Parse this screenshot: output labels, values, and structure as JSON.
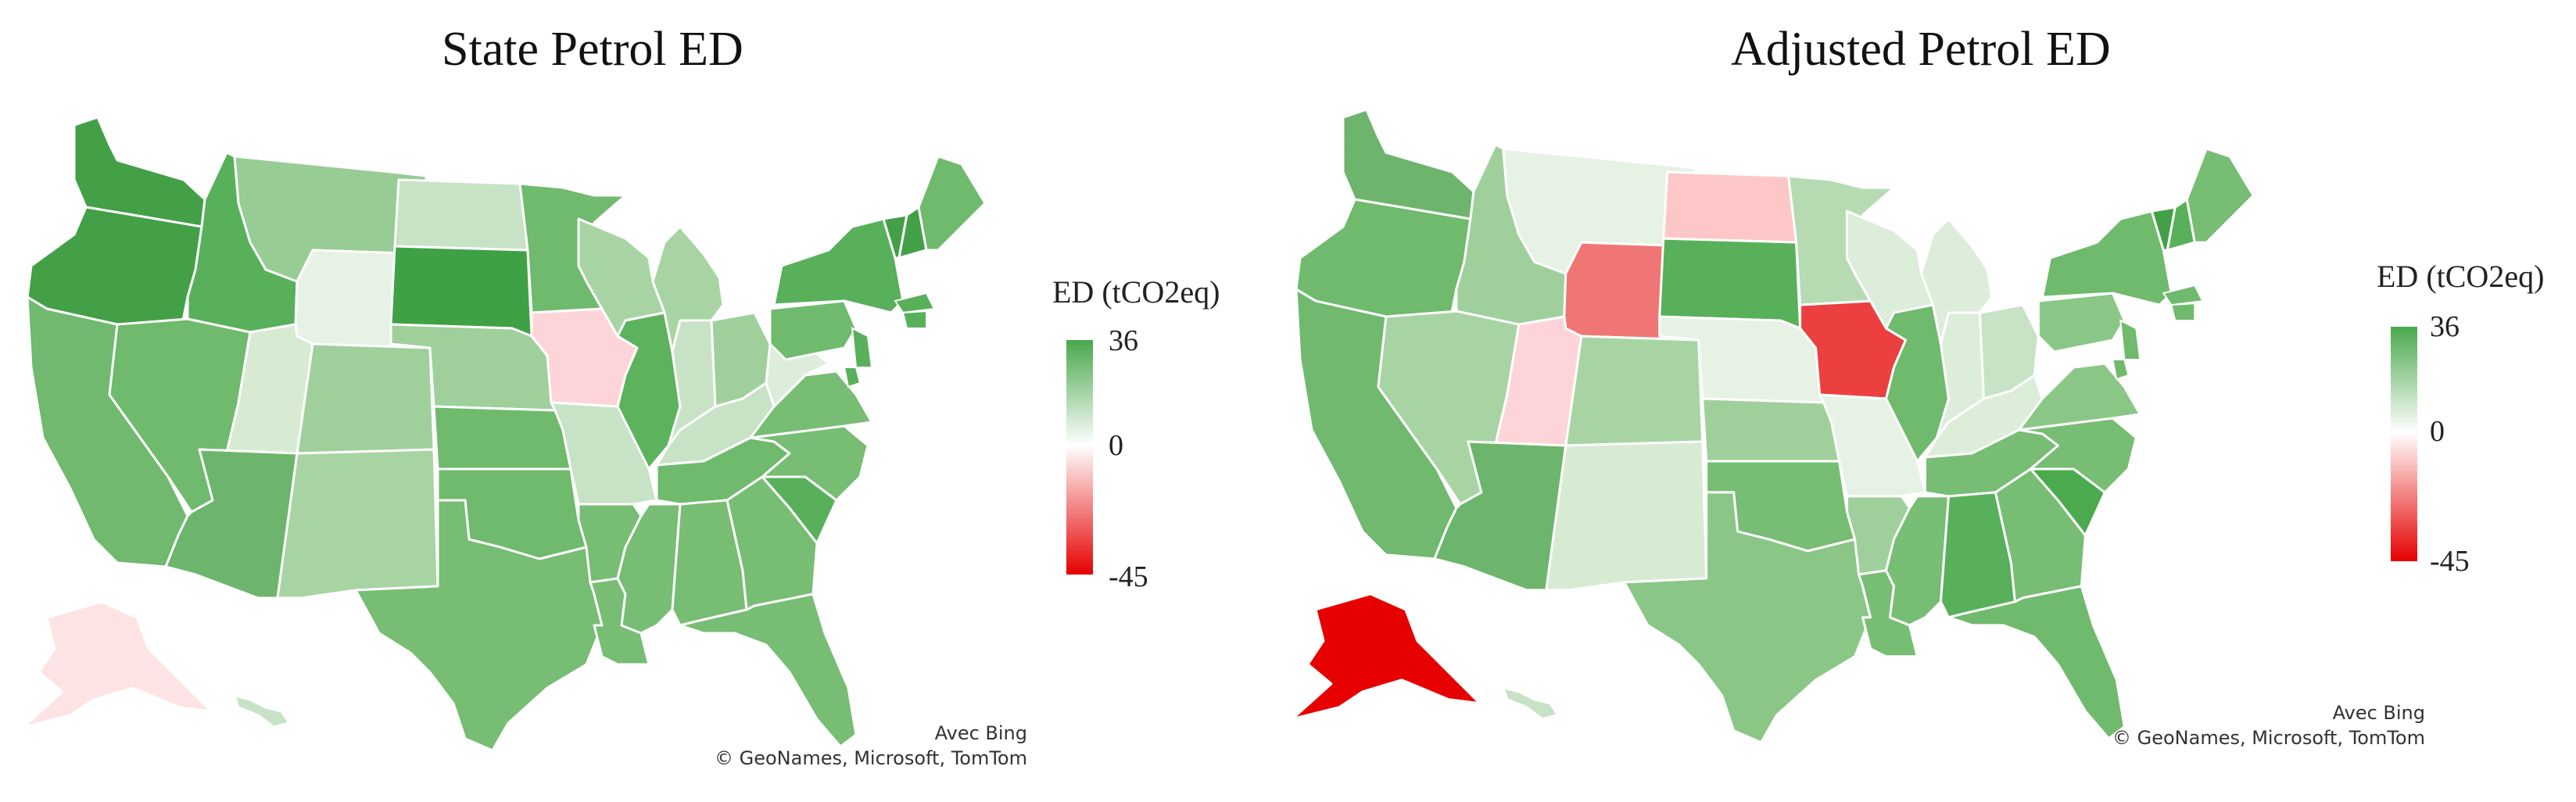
{
  "maps": [
    {
      "title": "State Petrol ED",
      "legend": {
        "title": "ED (tCO2eq)",
        "max": "36",
        "mid": "0",
        "min": "-45"
      },
      "attribution": {
        "line1": "Avec Bing",
        "line2": "© GeoNames, Microsoft, TomTom"
      },
      "colors": {
        "wa": "#43a047",
        "or": "#43a047",
        "id": "#58b05b",
        "mt": "#97cc95",
        "wy": "#e6f2e4",
        "nd": "#c8e2c5",
        "sd": "#3fa145",
        "mn": "#6fba6d",
        "ia": "#fdd5d8",
        "ca": "#70b96f",
        "nv": "#6fba6d",
        "ut": "#d7ebd3",
        "co": "#9fd09c",
        "az": "#6db56c",
        "nm": "#a8d4a4",
        "ne": "#9fd09c",
        "ks": "#6fba6d",
        "mo": "#c8e2c5",
        "il": "#5db25e",
        "ok": "#6fba6d",
        "tx": "#77bd74",
        "wi": "#a8d4a4",
        "mi": "#a8d4a4",
        "in": "#c8e2c5",
        "oh": "#9fd09c",
        "ky": "#c8e2c5",
        "wv": "#dcedd9",
        "tn": "#6fba6d",
        "ar": "#77bd74",
        "la": "#77bd74",
        "ms": "#77bd74",
        "al": "#77bd74",
        "ga": "#77bd74",
        "fl": "#77bd74",
        "sc": "#58b05b",
        "nc": "#77bd74",
        "va": "#77bd74",
        "pa": "#6fba6d",
        "ny": "#58b05b",
        "vt": "#43a047",
        "nh": "#43a047",
        "me": "#6fba6d",
        "ak": "#fde3e4",
        "hi": "#c8e2c5"
      }
    },
    {
      "title": "Adjusted Petrol ED",
      "legend": {
        "title": "ED (tCO2eq)",
        "max": "36",
        "mid": "0",
        "min": "-45"
      },
      "attribution": {
        "line1": "Avec Bing",
        "line2": "© GeoNames, Microsoft, TomTom"
      },
      "colors": {
        "wa": "#6db56c",
        "or": "#6fba6d",
        "id": "#9fd09c",
        "mt": "#e6f2e4",
        "wy": "#f07575",
        "nd": "#fdc7c8",
        "sd": "#58b05b",
        "mn": "#b6dbb2",
        "ia": "#ec4040",
        "ca": "#70b96f",
        "nv": "#a8d4a4",
        "ut": "#fdd5d8",
        "co": "#a8d4a4",
        "az": "#6db56c",
        "nm": "#d7ebd3",
        "ne": "#e6f2e4",
        "ks": "#9fd09c",
        "mo": "#e6f2e4",
        "il": "#6fba6d",
        "ok": "#77bd74",
        "tx": "#8ac787",
        "wi": "#dcedd9",
        "mi": "#dcedd9",
        "in": "#dcedd9",
        "oh": "#c8e2c5",
        "ky": "#dcedd9",
        "wv": "#ffffff",
        "tn": "#77bd74",
        "ar": "#9fd09c",
        "la": "#77bd74",
        "ms": "#77bd74",
        "al": "#58b05b",
        "ga": "#77bd74",
        "fl": "#6fba6d",
        "sc": "#4caa4e",
        "nc": "#77bd74",
        "va": "#8ac787",
        "pa": "#8ac787",
        "ny": "#6fba6d",
        "vt": "#43a047",
        "nh": "#58b05b",
        "me": "#77bd74",
        "ak": "#e60000",
        "hi": "#c8e2c5"
      }
    }
  ]
}
